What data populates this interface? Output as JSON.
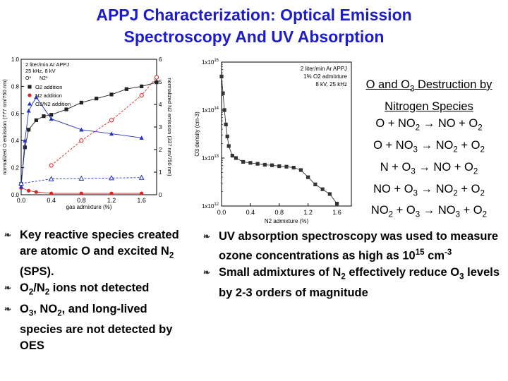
{
  "title": {
    "line1": "APPJ Characterization:  Optical Emission",
    "line2": "Spectroscopy And UV Absorption"
  },
  "left_bullets": [
    {
      "icon": "bullet-swirl-icon",
      "parts": [
        "Key reactive species created are atomic O and excited N",
        "2",
        " (SPS)."
      ]
    },
    {
      "icon": "bullet-swirl-icon",
      "parts": [
        "O",
        "2",
        "/N",
        "2",
        " ions not detected"
      ]
    },
    {
      "icon": "bullet-swirl-icon",
      "parts": [
        "O",
        "3",
        ", NO",
        "2",
        ", and long-lived species are not detected by OES"
      ]
    }
  ],
  "reactions": {
    "header": [
      "O and O",
      "3",
      " Destruction by Nitrogen Species"
    ],
    "lines": [
      [
        "O + NO",
        "2",
        " → NO + O",
        "2"
      ],
      [
        "O + NO",
        "3",
        " → NO",
        "2",
        " + O",
        "2"
      ],
      [
        "N + O",
        "3",
        " → NO + O",
        "2"
      ],
      [
        "NO + O",
        "3",
        " → NO",
        "2",
        " + O",
        "2"
      ],
      [
        "NO",
        "2",
        " + O",
        "3",
        " → NO",
        "3",
        " + O",
        "2"
      ]
    ]
  },
  "right_bullets": [
    {
      "icon": "bullet-swirl-icon",
      "parts": [
        "UV absorption spectroscopy was used to measure ozone concentrations as high as 10",
        "15",
        " cm",
        "-3"
      ]
    },
    {
      "icon": "bullet-swirl-icon",
      "parts": [
        "Small admixtures of N",
        "2",
        " effectively reduce O",
        "3",
        " levels by 2-3 orders of magnitude"
      ]
    }
  ],
  "colors": {
    "title": "#1c1ccc",
    "series_o": "#222222",
    "series_n2": "#dd2222",
    "series_o2n2": "#2233bb",
    "ozone": "#333333"
  },
  "chart_data": [
    {
      "type": "line",
      "legend_header": [
        "2 liter/min Ar APPJ",
        "25 kHz, 8 kV"
      ],
      "legend_placement": "top-left",
      "legend_markers": [
        "O*",
        "N2*"
      ],
      "xlabel": "gas admixture (%)",
      "ylabel": "normalized O emission (777 nm/750 nm)",
      "y2label": "normalized N2 emission (337 nm/750 nm)",
      "xlim": [
        0,
        1.8
      ],
      "ylim": [
        0,
        1.0
      ],
      "y2lim": [
        0,
        6
      ],
      "x_ticks": [
        "0.0",
        "0.4",
        "0.8",
        "1.2",
        "1.6"
      ],
      "x_tick_values": [
        0,
        0.4,
        0.8,
        1.2,
        1.6
      ],
      "y_ticks": [
        "0.0",
        "0.2",
        "0.4",
        "0.6",
        "0.8",
        "1.0"
      ],
      "y_tick_values": [
        0,
        0.2,
        0.4,
        0.6,
        0.8,
        1.0
      ],
      "y2_ticks": [
        "0",
        "1",
        "2",
        "3",
        "4",
        "5",
        "6"
      ],
      "y2_tick_values": [
        0,
        1,
        2,
        3,
        4,
        5,
        6
      ],
      "series": [
        {
          "name": "O2 addition",
          "color": "#222222",
          "axis": "left",
          "marker": "square",
          "dashed": false,
          "x": [
            0,
            0.05,
            0.1,
            0.2,
            0.3,
            0.4,
            0.6,
            0.8,
            1.0,
            1.2,
            1.4,
            1.6,
            1.8
          ],
          "y": [
            0.08,
            0.35,
            0.48,
            0.55,
            0.58,
            0.59,
            0.63,
            0.68,
            0.71,
            0.74,
            0.78,
            0.8,
            0.83
          ]
        },
        {
          "name": "",
          "color": "#dd2222",
          "axis": "right",
          "marker": "open-circle",
          "dashed": true,
          "x": [
            0.4,
            0.8,
            1.2,
            1.6,
            1.8
          ],
          "y": [
            1.3,
            2.4,
            3.3,
            4.4,
            5.2
          ]
        },
        {
          "name": "N2 addition",
          "color": "#dd2222",
          "axis": "left",
          "marker": "circle",
          "dashed": false,
          "x": [
            0,
            0.1,
            0.2,
            0.4,
            0.8,
            1.2,
            1.6
          ],
          "y": [
            0.05,
            0.03,
            0.02,
            0.01,
            0.01,
            0.01,
            0.01
          ]
        },
        {
          "name": "O2/N2 addition",
          "color": "#2233bb",
          "axis": "left",
          "marker": "triangle",
          "dashed": false,
          "x": [
            0,
            0.05,
            0.1,
            0.2,
            0.4,
            0.8,
            1.2,
            1.6
          ],
          "y": [
            0.06,
            0.4,
            0.62,
            0.72,
            0.56,
            0.48,
            0.45,
            0.42
          ]
        },
        {
          "name": "",
          "color": "#2233bb",
          "axis": "right",
          "marker": "open-triangle",
          "dashed": true,
          "x": [
            0,
            0.4,
            0.8,
            1.2,
            1.6
          ],
          "y": [
            0.5,
            0.7,
            0.72,
            0.74,
            0.76
          ]
        }
      ]
    },
    {
      "type": "line",
      "legend_header": [
        "2 liter/min Ar APPJ",
        "1% O2 admixture",
        "8 kV, 25 kHz"
      ],
      "legend_placement": "top-right",
      "xlabel": "N2 admixture (%)",
      "ylabel": "O3 density (cm-3)",
      "xlim": [
        0,
        1.8
      ],
      "ylim_log10": [
        12,
        15
      ],
      "log_y": true,
      "x_ticks": [
        "0.0",
        "0.4",
        "0.8",
        "1.2",
        "1.6"
      ],
      "x_tick_values": [
        0,
        0.4,
        0.8,
        1.2,
        1.6
      ],
      "y_ticks": [
        [
          "1x10",
          "12"
        ],
        [
          "1x10",
          "13"
        ],
        [
          "1x10",
          "14"
        ],
        [
          "1x10",
          "15"
        ]
      ],
      "y_tick_values": [
        12,
        13,
        14,
        15
      ],
      "series": [
        {
          "name": "",
          "color": "#333333",
          "marker": "square",
          "x": [
            0,
            0.02,
            0.04,
            0.06,
            0.08,
            0.1,
            0.15,
            0.2,
            0.3,
            0.4,
            0.5,
            0.6,
            0.7,
            0.8,
            0.9,
            1.0,
            1.1,
            1.2,
            1.3,
            1.4,
            1.5,
            1.6
          ],
          "log10_y": [
            14.7,
            14.35,
            14.0,
            13.7,
            13.45,
            13.25,
            13.05,
            13.0,
            12.92,
            12.9,
            12.88,
            12.86,
            12.85,
            12.83,
            12.82,
            12.8,
            12.75,
            12.6,
            12.45,
            12.35,
            12.25,
            12.05
          ]
        }
      ]
    }
  ]
}
